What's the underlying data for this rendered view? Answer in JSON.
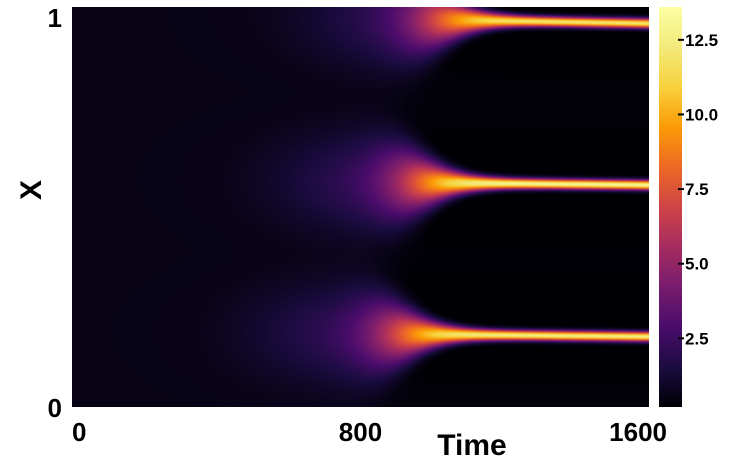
{
  "chart_data": {
    "type": "heatmap",
    "title": "",
    "xlabel": "Time",
    "ylabel": "X",
    "xlim": [
      0,
      1600
    ],
    "ylim": [
      0,
      1
    ],
    "x_ticks": [
      {
        "value": 0,
        "label": "0"
      },
      {
        "value": 800,
        "label": "800"
      },
      {
        "value": 1600,
        "label": "1600"
      }
    ],
    "y_ticks": [
      {
        "value": 0,
        "label": "0"
      },
      {
        "value": 1,
        "label": "1"
      }
    ],
    "colormap": "inferno",
    "colorbar": {
      "range": [
        0.2,
        13.6
      ],
      "ticks": [
        {
          "value": 2.5,
          "label": "2.5"
        },
        {
          "value": 5.0,
          "label": "5.0"
        },
        {
          "value": 7.5,
          "label": "7.5"
        },
        {
          "value": 10.0,
          "label": "10.0"
        },
        {
          "value": 12.5,
          "label": "12.5"
        }
      ]
    },
    "background_value": 0.6,
    "peaks": [
      {
        "x_center_start": 0.19,
        "x_center_end": 0.175,
        "emergence_time": 550,
        "sharpen_time": 900,
        "peak_value": 12.5
      },
      {
        "x_center_start": 0.57,
        "x_center_end": 0.555,
        "emergence_time": 620,
        "sharpen_time": 950,
        "peak_value": 13.0
      },
      {
        "x_center_start": 0.985,
        "x_center_end": 0.96,
        "emergence_time": 700,
        "sharpen_time": 1000,
        "peak_value": 12.0
      }
    ]
  }
}
